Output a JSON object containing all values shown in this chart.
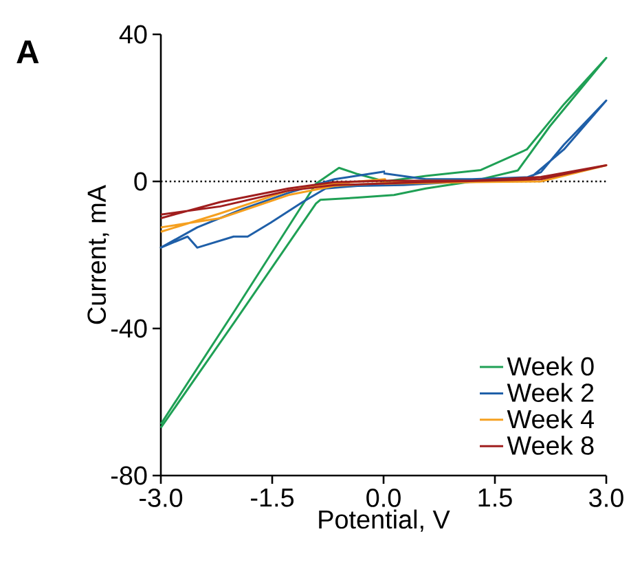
{
  "chart_data": {
    "type": "line",
    "xlabel": "Potential, V",
    "ylabel": "Current, mA",
    "annotations": [
      "A"
    ],
    "xlim": [
      -3,
      3
    ],
    "ylim": [
      -80,
      40
    ],
    "xticks": [
      {
        "value": -3,
        "label": "-3.0"
      },
      {
        "value": -1.5,
        "label": "-1.5"
      },
      {
        "value": 0,
        "label": "0.0"
      },
      {
        "value": 1.5,
        "label": "1.5"
      },
      {
        "value": 3,
        "label": "3.0"
      }
    ],
    "yticks": [
      -80,
      -40,
      0,
      40
    ],
    "grid": false,
    "legend": "bottom right",
    "line_style": "solid",
    "marker": "none",
    "ref_lines": [
      {
        "axis": "y",
        "value": 0,
        "label": null,
        "color": "#000000",
        "line_style": "dotted"
      }
    ],
    "series": [
      {
        "name": "Week 0",
        "color": "#1fa055",
        "x": [
          -3,
          -2.0,
          -0.91,
          -0.85,
          -0.35,
          0.14,
          0.57,
          1.19,
          1.81,
          2.24,
          3,
          2.43,
          1.93,
          1.31,
          0.57,
          0.02,
          -0.35,
          -0.6,
          -0.91,
          -2.0,
          -3
        ],
        "values": [
          -67,
          -38,
          -6,
          -5,
          -4.4,
          -3.7,
          -1.9,
          0,
          3,
          15,
          33.6,
          21,
          8.7,
          3.1,
          1.5,
          0,
          2,
          3.7,
          -0.6,
          -35,
          -66
        ]
      },
      {
        "name": "Week 2",
        "color": "#1f5fa8",
        "x": [
          0.02,
          -0.66,
          -1.28,
          -1.9,
          -2.51,
          -3,
          -2.64,
          -2.51,
          -2.02,
          -1.83,
          -1.52,
          -1.09,
          -0.78,
          -0.35,
          0.27,
          0.88,
          1.81,
          2.12,
          2.43,
          3,
          2.43,
          1.99,
          1.19,
          0.57,
          0.0
        ],
        "values": [
          2.7,
          0.6,
          -3.1,
          -7.5,
          -12.5,
          -18,
          -15,
          -18,
          -15,
          -15,
          -11.2,
          -5.6,
          -1.9,
          -1.2,
          -1,
          -0.3,
          0.2,
          2.5,
          10,
          22,
          8.7,
          1.2,
          0.6,
          0.6,
          2.2
        ]
      },
      {
        "name": "Week 4",
        "color": "#f5a020",
        "x": [
          -3,
          -2.2,
          -1.28,
          -0.66,
          0.02,
          0.02,
          1.19,
          2.12,
          3,
          2.43,
          1.81,
          0.57,
          -0.66,
          -1.28,
          -2.2,
          -3
        ],
        "values": [
          -13.7,
          -8.7,
          -2.5,
          -0.6,
          0.6,
          -0.6,
          -0.2,
          0,
          4.4,
          1.9,
          0,
          0.2,
          -1.2,
          -3.7,
          -10,
          -12.5
        ]
      },
      {
        "name": "Week 8",
        "color": "#a01e1e",
        "x": [
          -3,
          -2.2,
          -1.28,
          -0.66,
          0.02,
          1.19,
          2.12,
          3,
          2.12,
          0.57,
          -0.66,
          -1.28,
          -2.2,
          -3
        ],
        "values": [
          -10,
          -5.6,
          -1.9,
          -0.2,
          0.2,
          0.2,
          1.2,
          4.4,
          0.6,
          -0.2,
          -1,
          -2.5,
          -6.8,
          -9
        ]
      }
    ]
  }
}
